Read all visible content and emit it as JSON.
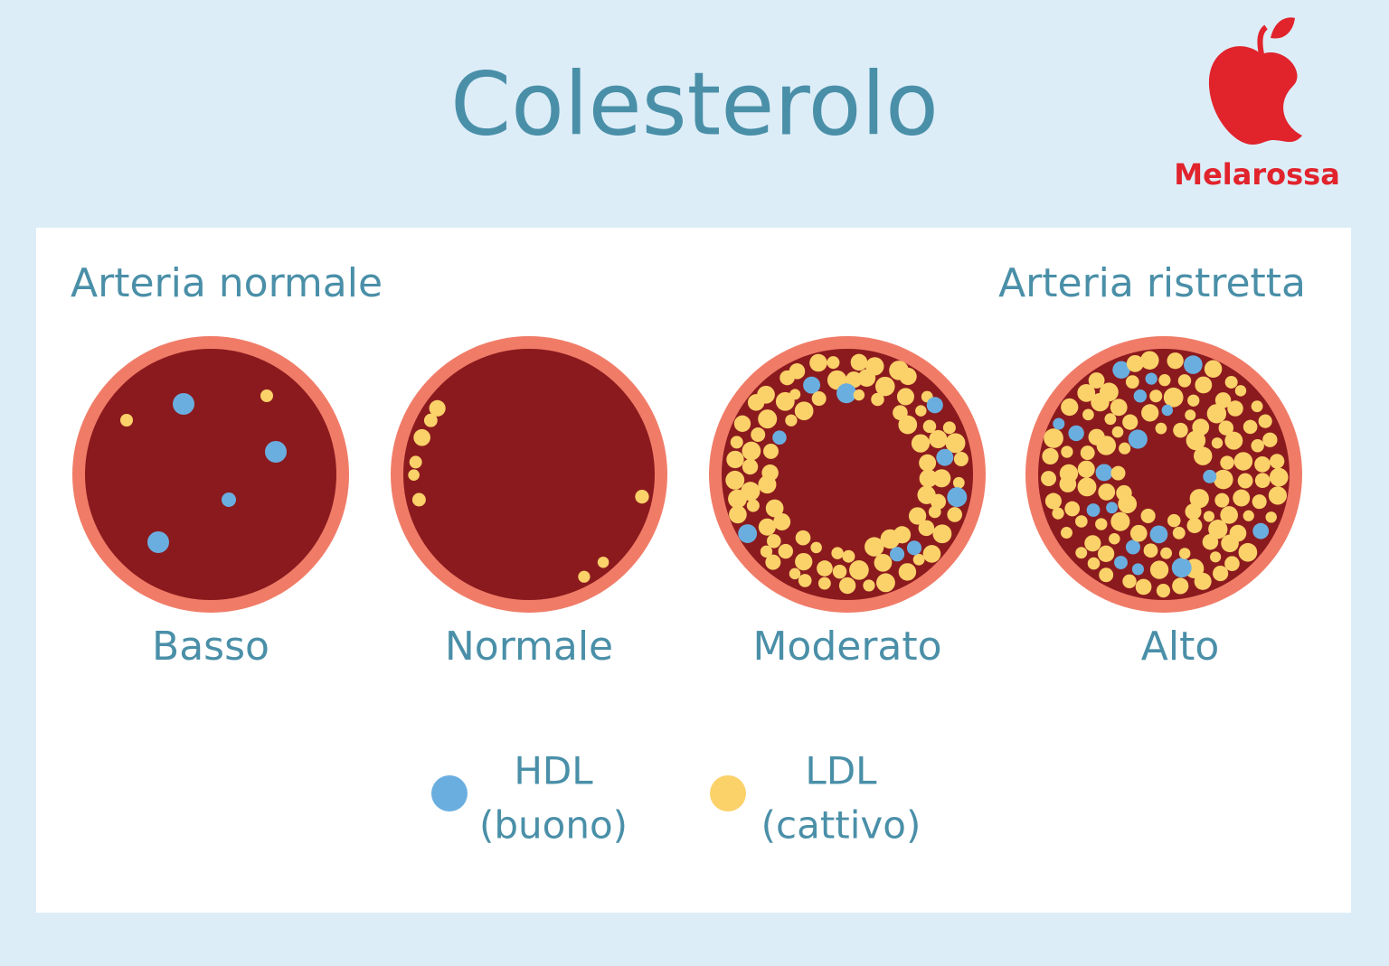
{
  "header": {
    "title": "Colesterolo",
    "brand": "Melarossa"
  },
  "labels": {
    "left": "Arteria normale",
    "right": "Arteria ristretta"
  },
  "arteries": [
    {
      "label": "Basso"
    },
    {
      "label": "Normale"
    },
    {
      "label": "Moderato"
    },
    {
      "label": "Alto"
    }
  ],
  "legend": [
    {
      "name": "HDL",
      "note": "(buono)"
    },
    {
      "name": "LDL",
      "note": "(cattivo)"
    }
  ]
}
